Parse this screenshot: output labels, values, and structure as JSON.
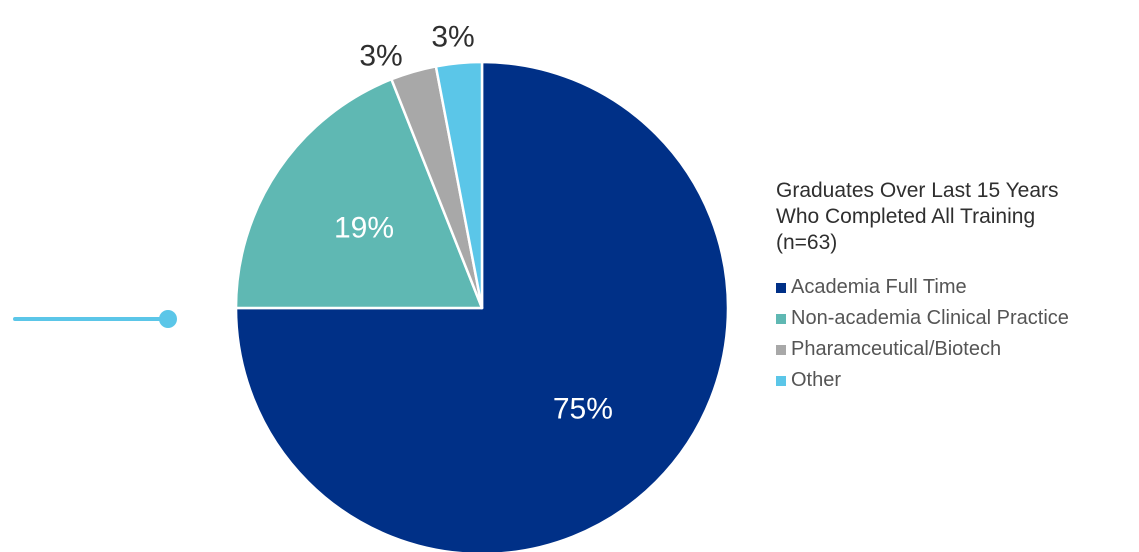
{
  "chart_data": {
    "type": "pie",
    "title_lines": [
      "Graduates Over Last 15 Years",
      "Who Completed All Training",
      "(n=63)"
    ],
    "slices": [
      {
        "label": "Academia Full Time",
        "value": 75,
        "display": "75%",
        "color": "#003087"
      },
      {
        "label": "Non-academia Clinical Practice",
        "value": 19,
        "display": "19%",
        "color": "#5fb8b3"
      },
      {
        "label": "Pharamceutical/Biotech",
        "value": 3,
        "display": "3%",
        "color": "#a8a8a8"
      },
      {
        "label": "Other",
        "value": 3,
        "display": "3%",
        "color": "#5bc6e8"
      }
    ],
    "legend_position": "right"
  },
  "decoration": {
    "accent_color": "#5bc6e8"
  }
}
